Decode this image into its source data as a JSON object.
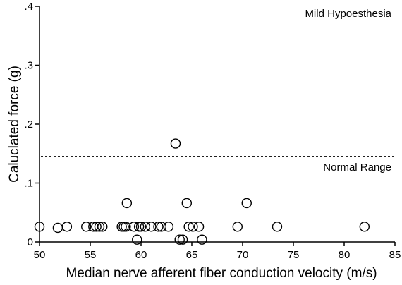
{
  "chart_data": {
    "type": "scatter",
    "title": "",
    "xlabel": "Median nerve afferent fiber conduction velocity (m/s)",
    "ylabel": "Caluclated force (g)",
    "xlim": [
      50,
      85
    ],
    "ylim": [
      0,
      0.4
    ],
    "x_ticks": [
      50,
      55,
      60,
      65,
      70,
      75,
      80,
      85
    ],
    "x_tick_labels": [
      "50",
      "55",
      "60",
      "65",
      "70",
      "75",
      "80",
      "85"
    ],
    "y_ticks": [
      0,
      0.1,
      0.2,
      0.3,
      0.4
    ],
    "y_tick_labels": [
      "0",
      ".1",
      ".2",
      ".3",
      ".4"
    ],
    "grid": false,
    "legend": "none",
    "reference_line": {
      "y": 0.145,
      "style": "dotted",
      "label": "Normal Range"
    },
    "annotations": [
      {
        "text": "Mild Hypoesthesia",
        "position": "top-right"
      }
    ],
    "series": [
      {
        "marker": "open-circle",
        "points": [
          {
            "x": 50.0,
            "y": 0.026
          },
          {
            "x": 51.8,
            "y": 0.024
          },
          {
            "x": 52.7,
            "y": 0.026
          },
          {
            "x": 54.6,
            "y": 0.026
          },
          {
            "x": 55.3,
            "y": 0.026
          },
          {
            "x": 55.6,
            "y": 0.026
          },
          {
            "x": 55.9,
            "y": 0.026
          },
          {
            "x": 56.2,
            "y": 0.026
          },
          {
            "x": 58.1,
            "y": 0.026
          },
          {
            "x": 58.3,
            "y": 0.026
          },
          {
            "x": 58.5,
            "y": 0.026
          },
          {
            "x": 58.6,
            "y": 0.066
          },
          {
            "x": 59.3,
            "y": 0.026
          },
          {
            "x": 59.6,
            "y": 0.004
          },
          {
            "x": 59.8,
            "y": 0.026
          },
          {
            "x": 60.0,
            "y": 0.026
          },
          {
            "x": 60.4,
            "y": 0.026
          },
          {
            "x": 61.0,
            "y": 0.026
          },
          {
            "x": 61.7,
            "y": 0.026
          },
          {
            "x": 62.0,
            "y": 0.026
          },
          {
            "x": 62.7,
            "y": 0.026
          },
          {
            "x": 63.4,
            "y": 0.167
          },
          {
            "x": 63.8,
            "y": 0.004
          },
          {
            "x": 64.1,
            "y": 0.004
          },
          {
            "x": 64.5,
            "y": 0.066
          },
          {
            "x": 64.7,
            "y": 0.026
          },
          {
            "x": 65.1,
            "y": 0.026
          },
          {
            "x": 65.7,
            "y": 0.026
          },
          {
            "x": 66.0,
            "y": 0.004
          },
          {
            "x": 69.5,
            "y": 0.026
          },
          {
            "x": 70.4,
            "y": 0.066
          },
          {
            "x": 73.4,
            "y": 0.026
          },
          {
            "x": 82.0,
            "y": 0.026
          }
        ]
      }
    ]
  }
}
